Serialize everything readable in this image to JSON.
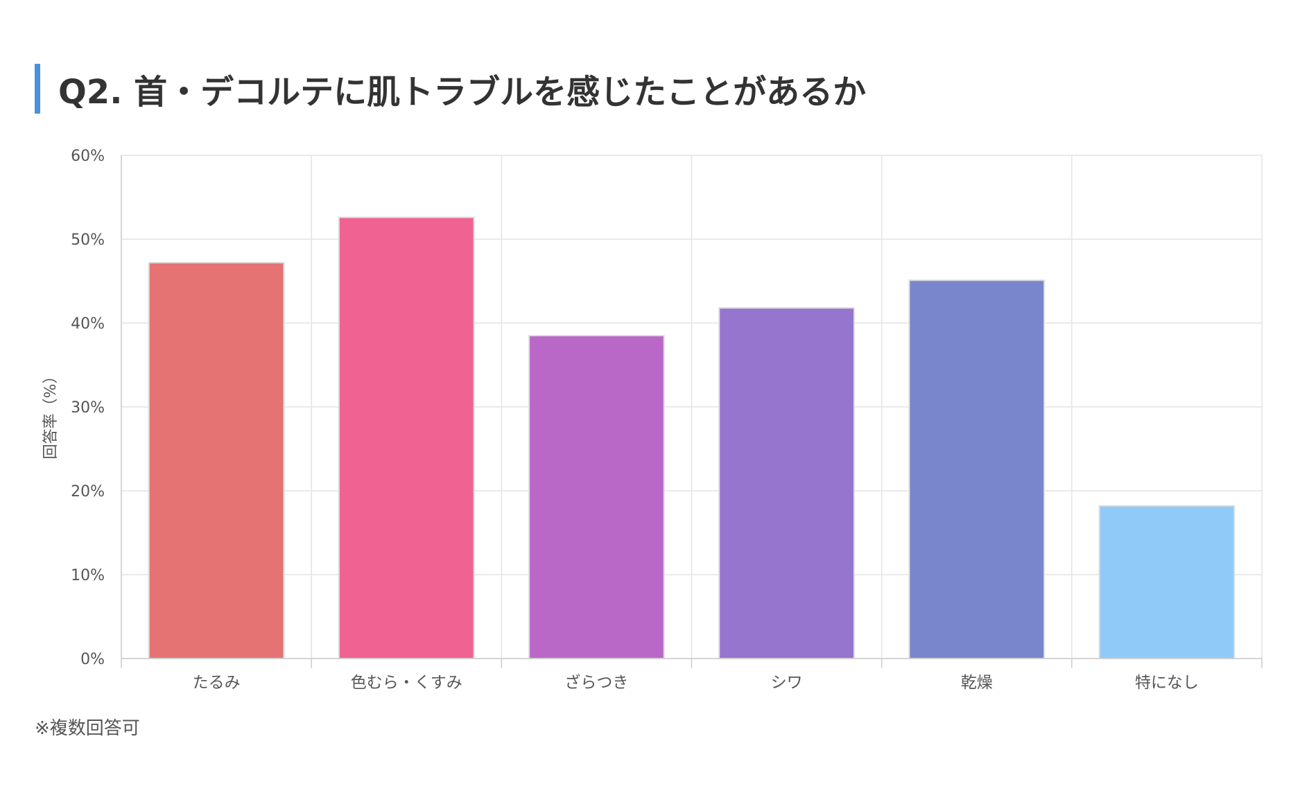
{
  "title": "Q2. 首・デコルテに肌トラブルを感じたことがあるか",
  "footnote": "※複数回答可",
  "colors": {
    "accent_bar": "#4a90e2",
    "grid": "#e3e3e3",
    "axis": "#cccccc",
    "tick_text": "#555555",
    "bar_border": "#dddddd"
  },
  "chart_data": {
    "type": "bar",
    "categories": [
      "たるみ",
      "色むら・くすみ",
      "ざらつき",
      "シワ",
      "乾燥",
      "特になし"
    ],
    "values": [
      47.2,
      52.6,
      38.5,
      41.8,
      45.1,
      18.2
    ],
    "bar_colors": [
      "#e57373",
      "#f06292",
      "#ba68c8",
      "#9575cd",
      "#7986cb",
      "#90caf9"
    ],
    "title": "Q2. 首・デコルテに肌トラブルを感じたことがあるか",
    "xlabel": "",
    "ylabel": "回答率（%）",
    "ylim": [
      0,
      60
    ],
    "yticks": [
      0,
      10,
      20,
      30,
      40,
      50,
      60
    ],
    "ytick_suffix": "%",
    "grid": true,
    "legend": false
  }
}
